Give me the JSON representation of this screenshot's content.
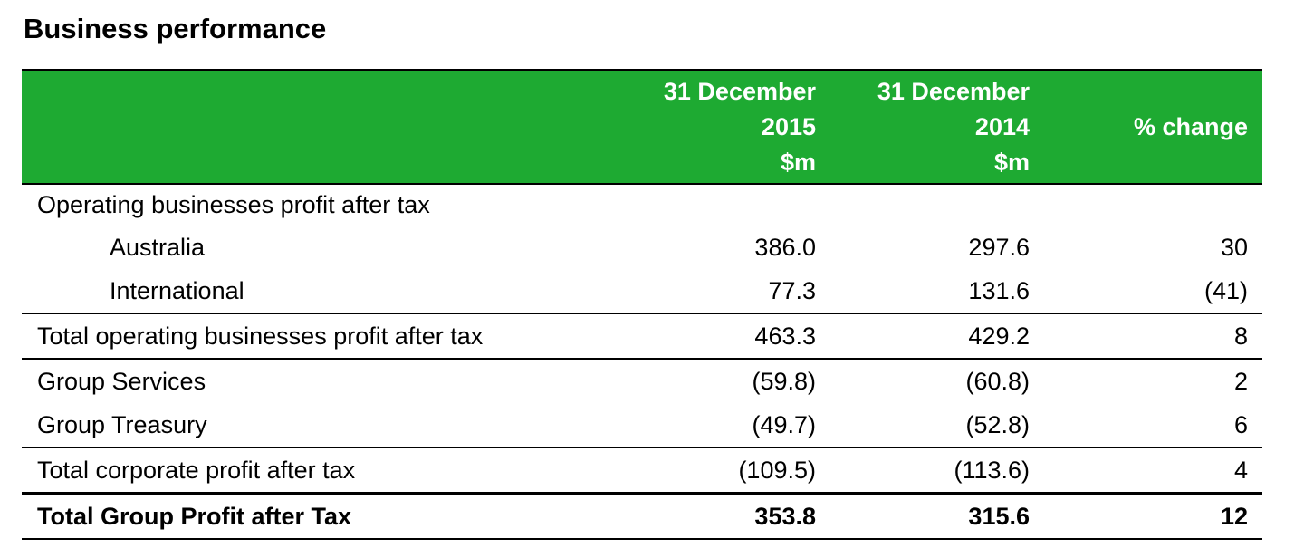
{
  "title": "Business performance",
  "table": {
    "headers": {
      "col1": [
        "31 December",
        "2015",
        "$m"
      ],
      "col2": [
        "31 December",
        "2014",
        "$m"
      ],
      "col3": "% change"
    },
    "section_label": "Operating businesses profit after tax",
    "rows": [
      {
        "label": "Australia",
        "y2015": "386.0",
        "y2014": "297.6",
        "change": "30"
      },
      {
        "label": "International",
        "y2015": "77.3",
        "y2014": "131.6",
        "change": "(41)"
      },
      {
        "label": "Total operating businesses profit after tax",
        "y2015": "463.3",
        "y2014": "429.2",
        "change": "8"
      },
      {
        "label": "Group Services",
        "y2015": "(59.8)",
        "y2014": "(60.8)",
        "change": "2"
      },
      {
        "label": "Group Treasury",
        "y2015": "(49.7)",
        "y2014": "(52.8)",
        "change": "6"
      },
      {
        "label": "Total corporate profit after tax",
        "y2015": "(109.5)",
        "y2014": "(113.6)",
        "change": "4"
      },
      {
        "label": "Total Group Profit after Tax",
        "y2015": "353.8",
        "y2014": "315.6",
        "change": "12"
      }
    ]
  },
  "colors": {
    "header_background": "#1eaa32",
    "header_text": "#ffffff"
  }
}
